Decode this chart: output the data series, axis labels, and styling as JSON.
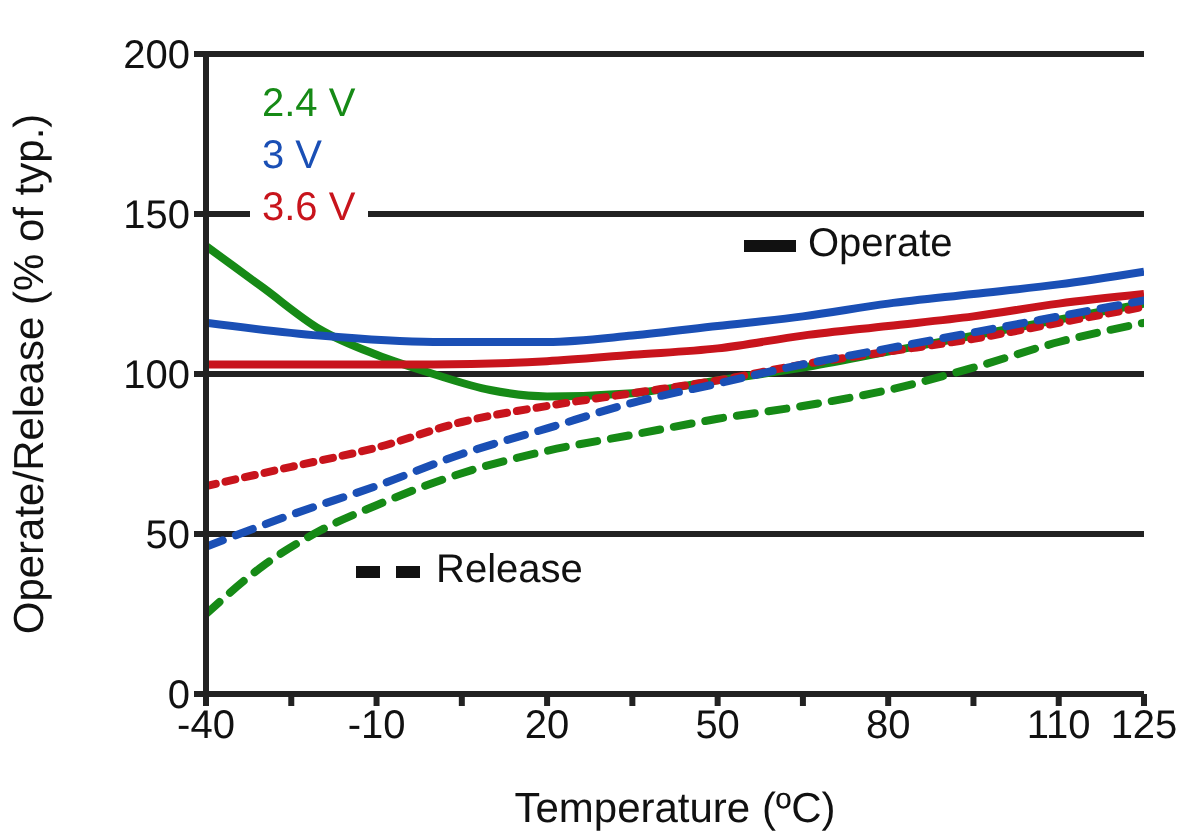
{
  "chart_data": {
    "type": "line",
    "xlabel": "Temperature (ºC)",
    "ylabel": "Operate/Release  (% of typ.)",
    "xlim": [
      -40,
      125
    ],
    "xticks": [
      -40,
      {
        "value": -25,
        "label": null
      },
      -10,
      {
        "value": 5,
        "label": null
      },
      20,
      {
        "value": 35,
        "label": null
      },
      50,
      {
        "value": 65,
        "label": null
      },
      80,
      {
        "value": 95,
        "label": null
      },
      110,
      125
    ],
    "ylim": [
      0,
      200
    ],
    "yticks": [
      0,
      50,
      100,
      150,
      200
    ],
    "grid": "y",
    "legend": "top left",
    "marker": "none",
    "annotations": [
      "Operate",
      "Release"
    ],
    "series": [
      {
        "name": "2.4 V",
        "color": "#168a16",
        "line_style": "solid",
        "x": [
          -40,
          -30,
          -20,
          -10,
          0,
          10,
          20,
          35,
          50,
          65,
          80,
          95,
          110,
          125
        ],
        "values": [
          140,
          127,
          114,
          106,
          100,
          95,
          93,
          94,
          98,
          102,
          107,
          112,
          117,
          122
        ]
      },
      {
        "name": "3 V",
        "color": "#1a4fb5",
        "line_style": "solid",
        "x": [
          -40,
          -20,
          0,
          20,
          35,
          50,
          65,
          80,
          95,
          110,
          125
        ],
        "values": [
          116,
          112,
          110,
          110,
          112,
          115,
          118,
          122,
          125,
          128,
          132
        ]
      },
      {
        "name": "3.6 V",
        "color": "#c8141c",
        "line_style": "solid",
        "x": [
          -40,
          -20,
          0,
          20,
          35,
          50,
          65,
          80,
          95,
          110,
          125
        ],
        "values": [
          103,
          103,
          103,
          104,
          106,
          108,
          112,
          115,
          118,
          122,
          125
        ]
      },
      {
        "color": "#c8141c",
        "line_style": "dotted",
        "x": [
          -40,
          -25,
          -10,
          5,
          20,
          35,
          50,
          65,
          80,
          95,
          110,
          125
        ],
        "values": [
          65,
          71,
          77,
          85,
          90,
          94,
          98,
          103,
          107,
          111,
          116,
          121
        ]
      },
      {
        "color": "#1a4fb5",
        "line_style": "dashed",
        "x": [
          -40,
          -25,
          -10,
          5,
          20,
          35,
          50,
          65,
          80,
          95,
          110,
          125
        ],
        "values": [
          46,
          56,
          65,
          75,
          83,
          91,
          97,
          103,
          108,
          113,
          118,
          123
        ]
      },
      {
        "color": "#168a16",
        "line_style": "dashed",
        "x": [
          -40,
          -30,
          -20,
          -10,
          5,
          20,
          35,
          50,
          65,
          80,
          95,
          110,
          125
        ],
        "values": [
          25,
          40,
          51,
          59,
          69,
          76,
          81,
          86,
          90,
          95,
          102,
          110,
          116
        ]
      }
    ]
  }
}
